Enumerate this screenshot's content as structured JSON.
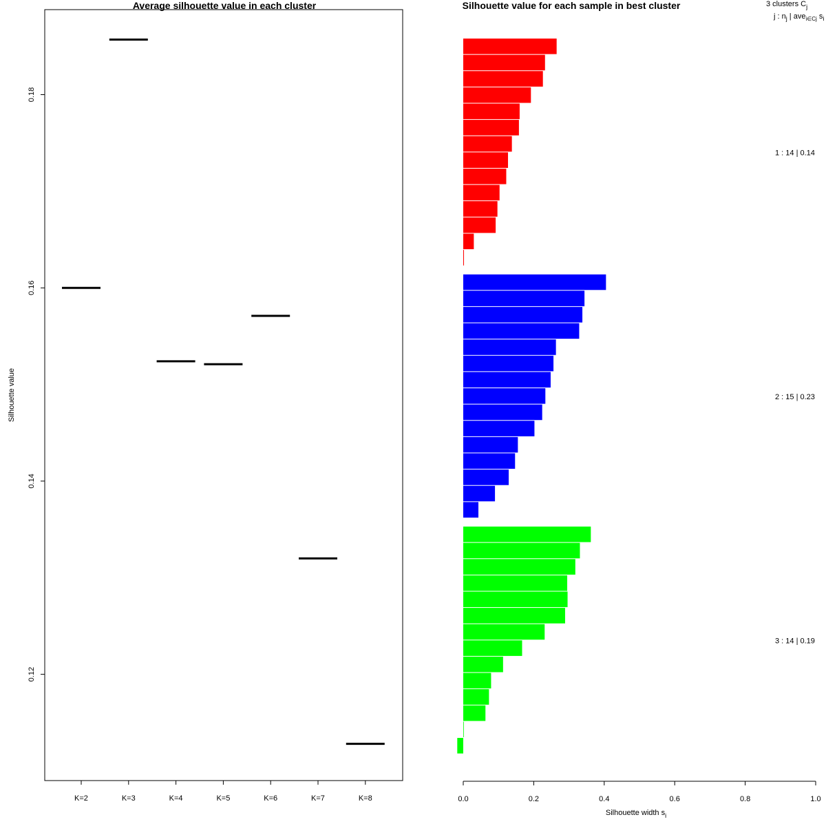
{
  "chart_data": [
    {
      "type": "scatter",
      "marker": "horizontal-segment",
      "title": "Average silhouette value in each cluster",
      "xlabel": "",
      "ylabel": "Silhouette value",
      "categories": [
        "K=2",
        "K=3",
        "K=4",
        "K=5",
        "K=6",
        "K=7",
        "K=8"
      ],
      "values": [
        0.16,
        0.1857,
        0.1524,
        0.1521,
        0.1571,
        0.132,
        0.1128
      ],
      "ylim": [
        0.109,
        0.1888
      ],
      "yticks": [
        "0.12",
        "0.14",
        "0.16",
        "0.18"
      ],
      "ytick_values": [
        0.12,
        0.14,
        0.16,
        0.18
      ]
    },
    {
      "type": "bar",
      "orientation": "horizontal",
      "title": "Silhouette value for each sample in best cluster",
      "xlabel": "Silhouette width s",
      "xlabel_subscript": "i",
      "xlim": [
        0,
        1
      ],
      "xticks": [
        "0.0",
        "0.2",
        "0.4",
        "0.6",
        "0.8",
        "1.0"
      ],
      "xtick_values": [
        0,
        0.2,
        0.4,
        0.6,
        0.8,
        1.0
      ],
      "header": {
        "line1_main": "3  clusters  C",
        "line1_sub": "j",
        "line2_a": "j :  n",
        "line2_sub1": "j",
        "line2_b": " | ave",
        "line2_sub2": "i∈Cj",
        "line2_c": "  s",
        "line2_sub3": "i"
      },
      "series": [
        {
          "name": "1",
          "color": "#ff0000",
          "annotation": "1 :  14  |  0.14",
          "values": [
            0.265,
            0.232,
            0.226,
            0.192,
            0.16,
            0.158,
            0.138,
            0.127,
            0.122,
            0.103,
            0.097,
            0.092,
            0.03,
            0.002
          ]
        },
        {
          "name": "2",
          "color": "#0000ff",
          "annotation": "2 :  15  |  0.23",
          "values": [
            0.405,
            0.344,
            0.338,
            0.329,
            0.263,
            0.256,
            0.248,
            0.233,
            0.224,
            0.202,
            0.155,
            0.147,
            0.129,
            0.09,
            0.043
          ]
        },
        {
          "name": "3",
          "color": "#00ff00",
          "annotation": "3 :  14  |  0.19",
          "values": [
            0.362,
            0.331,
            0.318,
            0.295,
            0.296,
            0.289,
            0.231,
            0.167,
            0.113,
            0.079,
            0.073,
            0.063,
            0.0,
            -0.017
          ]
        }
      ]
    }
  ]
}
